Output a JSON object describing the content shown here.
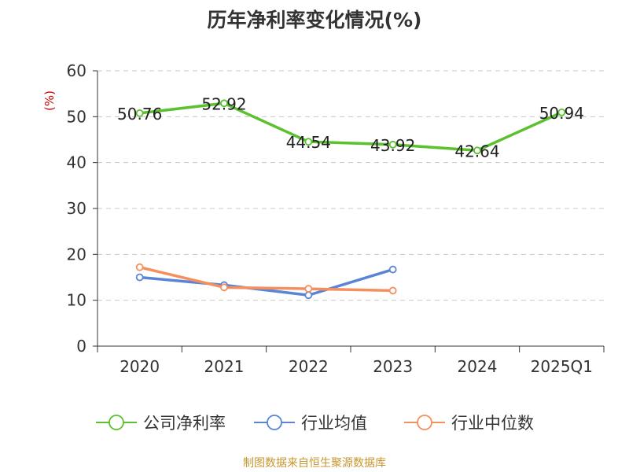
{
  "header": {
    "title": "历年净利率变化情况(%)"
  },
  "footer": {
    "source": "制图数据来自恒生聚源数据库"
  },
  "chart_data": {
    "type": "line",
    "title": "历年净利率变化情况(%)",
    "ylabel": "(%)",
    "xlabel": "",
    "categories": [
      "2020",
      "2021",
      "2022",
      "2023",
      "2024",
      "2025Q1"
    ],
    "ylim": [
      0,
      60
    ],
    "yticks": [
      0,
      10,
      20,
      30,
      40,
      50,
      60
    ],
    "grid": "horizontal-dashed",
    "legend_position": "bottom",
    "series": [
      {
        "name": "公司净利率",
        "color": "#5cc12e",
        "show_labels": true,
        "values": [
          50.76,
          52.92,
          44.54,
          43.92,
          42.64,
          50.94
        ]
      },
      {
        "name": "行业均值",
        "color": "#5a84d6",
        "show_labels": false,
        "values": [
          15.0,
          13.3,
          11.1,
          16.7,
          null,
          null
        ]
      },
      {
        "name": "行业中位数",
        "color": "#f4905f",
        "show_labels": false,
        "values": [
          17.2,
          12.8,
          12.5,
          12.1,
          null,
          null
        ]
      }
    ]
  }
}
